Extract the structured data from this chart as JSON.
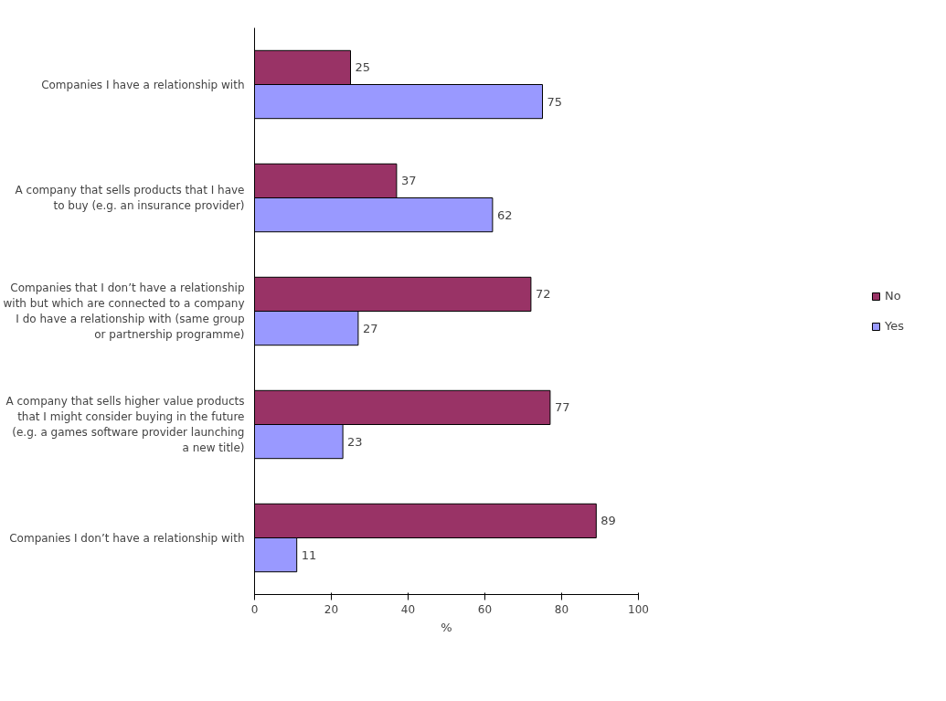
{
  "chart_data": {
    "type": "bar",
    "orientation": "horizontal",
    "xlabel": "%",
    "categories": [
      "Companies I have a relationship with",
      "A company that sells products that I have to buy (e.g. an insurance provider)",
      "Companies that I don’t have a relationship with but which are connected to a company I do have a relationship with (same group or partnership programme)",
      "A company that sells higher value products that I might consider buying in the future (e.g. a games software provider launching a new title)",
      "Companies I don’t have a relationship with"
    ],
    "series": [
      {
        "name": "No",
        "color": "#993366",
        "values": [
          25,
          37,
          72,
          77,
          89
        ]
      },
      {
        "name": "Yes",
        "color": "#9999ff",
        "values": [
          75,
          62,
          27,
          23,
          11
        ]
      }
    ],
    "xlim": [
      0,
      100
    ],
    "xticks": [
      0,
      20,
      40,
      60,
      80,
      100
    ],
    "grid": false,
    "legend": "right",
    "data_labels": true
  }
}
